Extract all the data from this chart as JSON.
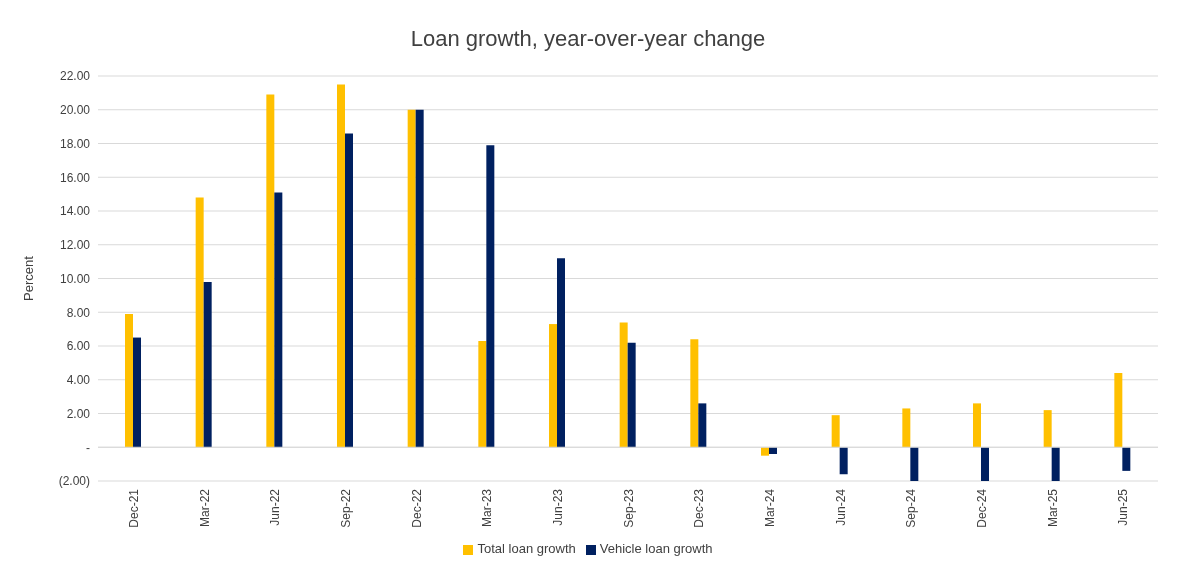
{
  "chart_data": {
    "type": "bar",
    "title": "Loan growth, year-over-year change",
    "ylabel": "Percent",
    "categories": [
      "Dec-21",
      "Mar-22",
      "Jun-22",
      "Sep-22",
      "Dec-22",
      "Mar-23",
      "Jun-23",
      "Sep-23",
      "Dec-23",
      "Mar-24",
      "Jun-24",
      "Sep-24",
      "Dec-24",
      "Mar-25",
      "Jun-25"
    ],
    "series": [
      {
        "name": "Total loan growth",
        "color": "#ffc000",
        "values": [
          7.9,
          14.8,
          20.9,
          21.5,
          20.0,
          6.3,
          7.3,
          7.4,
          6.4,
          -0.5,
          1.9,
          2.3,
          2.6,
          2.2,
          4.4
        ]
      },
      {
        "name": "Vehicle loan growth",
        "color": "#002060",
        "values": [
          6.5,
          9.8,
          15.1,
          18.6,
          20.0,
          17.9,
          11.2,
          6.2,
          2.6,
          -0.4,
          -1.6,
          -2.0,
          -2.0,
          -2.0,
          -1.4
        ]
      }
    ],
    "ylim": [
      -2,
      22
    ],
    "yticks": [
      {
        "value": -2,
        "label": "(2.00)"
      },
      {
        "value": 0,
        "label": "-"
      },
      {
        "value": 2,
        "label": "2.00"
      },
      {
        "value": 4,
        "label": "4.00"
      },
      {
        "value": 6,
        "label": "6.00"
      },
      {
        "value": 8,
        "label": "8.00"
      },
      {
        "value": 10,
        "label": "10.00"
      },
      {
        "value": 12,
        "label": "12.00"
      },
      {
        "value": 14,
        "label": "14.00"
      },
      {
        "value": 16,
        "label": "16.00"
      },
      {
        "value": 18,
        "label": "18.00"
      },
      {
        "value": 20,
        "label": "20.00"
      },
      {
        "value": 22,
        "label": "22.00"
      }
    ],
    "grid": "y",
    "legend": "bottom"
  }
}
